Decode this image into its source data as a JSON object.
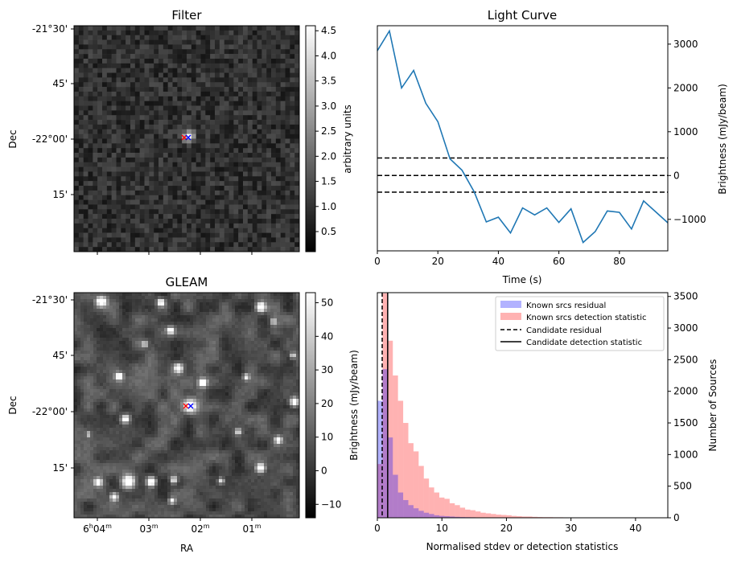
{
  "chart_data": [
    {
      "type": "heatmap",
      "title": "Filter",
      "xlabel": "",
      "ylabel": "Dec",
      "y_ticks": [
        "-21°30'",
        "45'",
        "-22°00'",
        "15'"
      ],
      "colorbar": {
        "label": "arbitrary units",
        "ticks": [
          0.5,
          1.0,
          1.5,
          2.0,
          2.5,
          3.0,
          3.5,
          4.0,
          4.5
        ],
        "range": [
          0.1,
          4.6
        ],
        "colormap": "gray"
      },
      "markers": [
        {
          "symbol": "x",
          "color": "#ff0000"
        },
        {
          "symbol": "x",
          "color": "#0000ff"
        }
      ]
    },
    {
      "type": "line",
      "title": "Light Curve",
      "xlabel": "Time (s)",
      "ylabel": "Brightness (mJy/beam)",
      "x": [
        0,
        4,
        8,
        12,
        16,
        20,
        24,
        28,
        32,
        36,
        40,
        44,
        48,
        52,
        56,
        60,
        64,
        68,
        72,
        76,
        80,
        84,
        88,
        92,
        96
      ],
      "series": [
        {
          "values": [
            2850,
            3300,
            2000,
            2400,
            1650,
            1230,
            380,
            120,
            -370,
            -1060,
            -950,
            -1310,
            -740,
            -900,
            -740,
            -1070,
            -760,
            -1530,
            -1280,
            -810,
            -840,
            -1220,
            -580,
            -830,
            -1080
          ],
          "color": "#1f77b4"
        }
      ],
      "hlines": [
        400,
        0,
        -380
      ],
      "xlim": [
        0,
        96
      ],
      "ylim": [
        -1720,
        3420
      ],
      "x_ticks": [
        0,
        20,
        40,
        60,
        80
      ],
      "y_ticks": [
        -1000,
        0,
        1000,
        2000,
        3000
      ],
      "y_axis_side": "right"
    },
    {
      "type": "heatmap",
      "title": "GLEAM",
      "xlabel": "RA",
      "ylabel": "Dec",
      "x_ticks": [
        {
          "main": "6",
          "sup1": "h",
          "mid": "04",
          "sup2": "m"
        },
        {
          "main": "03",
          "sup2": "m"
        },
        {
          "main": "02",
          "sup2": "m"
        },
        {
          "main": "01",
          "sup2": "m"
        }
      ],
      "y_ticks": [
        "-21°30'",
        "45'",
        "-22°00'",
        "15'"
      ],
      "colorbar": {
        "label": "Brightness (mJy/beam)",
        "ticks": [
          -10,
          0,
          10,
          20,
          30,
          40,
          50
        ],
        "range": [
          -14,
          53
        ],
        "colormap": "gray"
      },
      "markers": [
        {
          "symbol": "x",
          "color": "#ff0000"
        },
        {
          "symbol": "x",
          "color": "#0000ff"
        }
      ]
    },
    {
      "type": "bar",
      "title": "",
      "xlabel": "Normalised stdev or detection statistics",
      "ylabel": "Number of Sources",
      "xlim": [
        0,
        45
      ],
      "ylim": [
        0,
        3560
      ],
      "x_ticks": [
        0,
        10,
        20,
        30,
        40
      ],
      "y_ticks": [
        0,
        500,
        1000,
        1500,
        2000,
        2500,
        3000,
        3500
      ],
      "y_axis_side": "right",
      "bin_width": 0.8,
      "series": [
        {
          "name": "Known srcs residual",
          "color": "#0000ff",
          "alpha": 0.3,
          "bin_start": 0,
          "values": [
            1850,
            2350,
            1270,
            680,
            400,
            280,
            200,
            150,
            110,
            80,
            60,
            40,
            30,
            25,
            20,
            15,
            12,
            10,
            8,
            6
          ]
        },
        {
          "name": "Known srcs detection statistic",
          "color": "#ff0000",
          "alpha": 0.3,
          "bin_start": 0,
          "values": [
            850,
            3550,
            2800,
            2250,
            1850,
            1500,
            1180,
            1050,
            820,
            620,
            480,
            400,
            320,
            300,
            230,
            200,
            160,
            130,
            120,
            100,
            80,
            70,
            60,
            50,
            45,
            40,
            30,
            25,
            20,
            20,
            15,
            12,
            10,
            10,
            8,
            8,
            6,
            5,
            5,
            4,
            4,
            3,
            3,
            2,
            2,
            2,
            2,
            2,
            2,
            2,
            2,
            2,
            2
          ]
        }
      ],
      "vlines": [
        {
          "name": "Candidate residual",
          "x": 0.75,
          "style": "dashed"
        },
        {
          "name": "Candidate detection statistic",
          "x": 1.6,
          "style": "solid"
        }
      ],
      "left_axis_label": "Brightness (mJy/beam)",
      "legend": "top-right"
    }
  ]
}
